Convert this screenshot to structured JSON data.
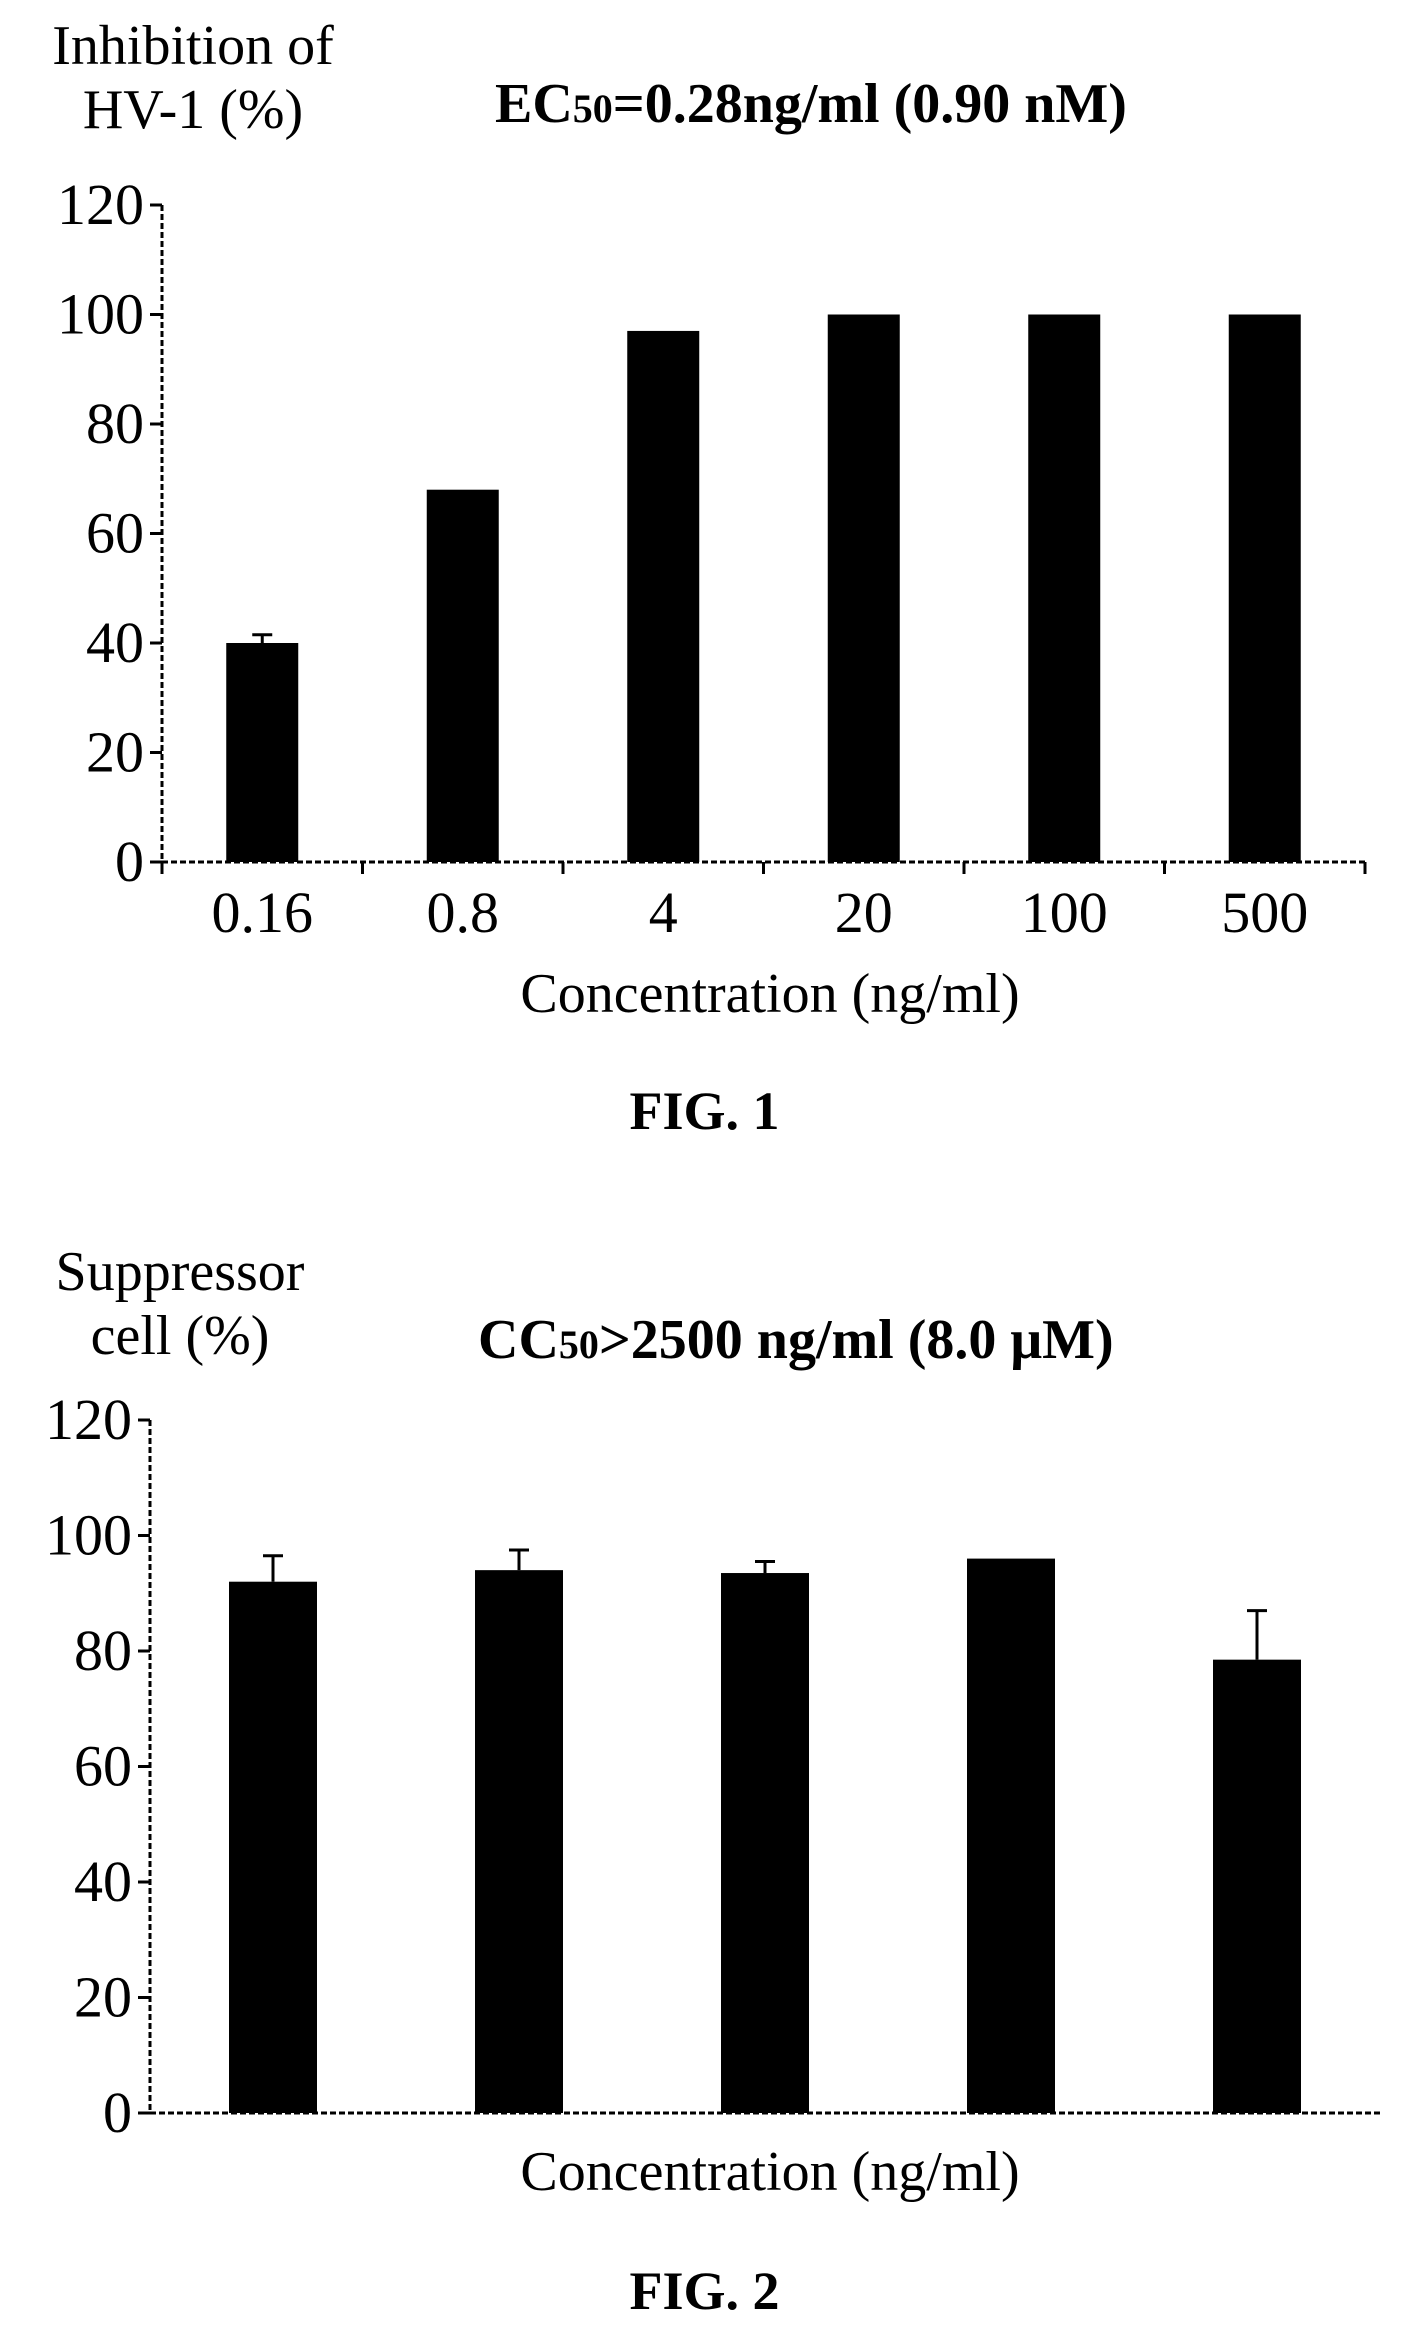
{
  "figures": [
    {
      "caption": "FIG. 1",
      "ylabel": "Inhibition of\nHV-1 (%)",
      "title_prefix": "EC",
      "title_sub": "50",
      "title_rest": "=0.28ng/ml (0.90 nM)",
      "xlabel": "Concentration (ng/ml)"
    },
    {
      "caption": "FIG. 2",
      "ylabel": "Suppressor\ncell (%)",
      "title_prefix": "CC",
      "title_sub": "50",
      "title_rest": ">2500 ng/ml (8.0 μM)",
      "xlabel": "Concentration (ng/ml)"
    }
  ],
  "chart_data": [
    {
      "type": "bar",
      "title": "EC50=0.28ng/ml (0.90 nM)",
      "xlabel": "Concentration (ng/ml)",
      "ylabel": "Inhibition of HV-1 (%)",
      "categories": [
        "0.16",
        "0.8",
        "4",
        "20",
        "100",
        "500"
      ],
      "values": [
        40,
        68,
        97,
        100,
        100,
        100
      ],
      "errors": [
        1.5,
        0,
        0,
        0,
        0,
        0
      ],
      "ylim": [
        0,
        120
      ],
      "yticks": [
        "0",
        "20",
        "40",
        "60",
        "80",
        "100",
        "120"
      ],
      "bar_color": "#000000",
      "grid": false
    },
    {
      "type": "bar",
      "title": "CC50>2500 ng/ml (8.0 μM)",
      "xlabel": "Concentration (ng/ml)",
      "ylabel": "Suppressor cell (%)",
      "categories": [
        "",
        "",
        "",
        "",
        ""
      ],
      "values": [
        92,
        94,
        93.5,
        96,
        78.5
      ],
      "errors": [
        4.5,
        3.5,
        2,
        0,
        8.5
      ],
      "ylim": [
        0,
        120
      ],
      "yticks": [
        "0",
        "20",
        "40",
        "60",
        "80",
        "100",
        "120"
      ],
      "bar_color": "#000000",
      "grid": false
    }
  ]
}
